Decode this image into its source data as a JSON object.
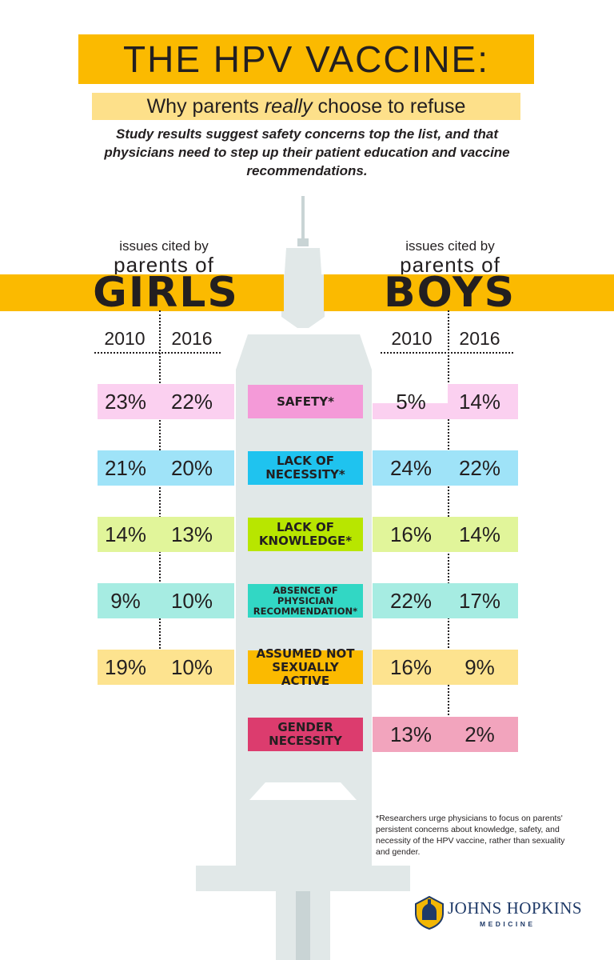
{
  "title": "THE HPV VACCINE:",
  "subtitle_before": "Why parents ",
  "subtitle_em": "really",
  "subtitle_after": " choose to refuse",
  "intro": "Study results suggest safety concerns top the list, and that physicians need to step up their patient education and vaccine recommendations.",
  "groups": {
    "girls": {
      "cited": "issues cited by",
      "parents": "parents of",
      "name": "GIRLS"
    },
    "boys": {
      "cited": "issues cited by",
      "parents": "parents of",
      "name": "BOYS"
    }
  },
  "years": [
    "2010",
    "2016"
  ],
  "rows": [
    {
      "label_lines": [
        "SAFETY*"
      ],
      "color": "#f49ad8",
      "light": "#fbd0f0",
      "girls": [
        "23%",
        "22%"
      ],
      "boys": [
        "5%",
        "14%"
      ]
    },
    {
      "label_lines": [
        "LACK OF",
        "NECESSITY*"
      ],
      "color": "#1fc3ef",
      "light": "#9fe3f8",
      "girls": [
        "21%",
        "20%"
      ],
      "boys": [
        "24%",
        "22%"
      ]
    },
    {
      "label_lines": [
        "LACK OF",
        "KNOWLEDGE*"
      ],
      "color": "#b8e600",
      "light": "#e1f59a",
      "girls": [
        "14%",
        "13%"
      ],
      "boys": [
        "16%",
        "14%"
      ]
    },
    {
      "label_lines": [
        "ABSENCE OF",
        "PHYSICIAN",
        "RECOMMENDATION*"
      ],
      "color": "#32d7c4",
      "light": "#a6ece2",
      "girls": [
        "9%",
        "10%"
      ],
      "boys": [
        "22%",
        "17%"
      ]
    },
    {
      "label_lines": [
        "ASSUMED NOT",
        "SEXUALLY ACTIVE"
      ],
      "color": "#fbba00",
      "light": "#fde38f",
      "girls": [
        "19%",
        "10%"
      ],
      "boys": [
        "16%",
        "9%"
      ]
    },
    {
      "label_lines": [
        "GENDER",
        "NECESSITY"
      ],
      "color": "#dc3c6e",
      "light": "#f2a4bd",
      "girls": null,
      "boys": [
        "13%",
        "2%"
      ]
    }
  ],
  "footnote": "*Researchers urge physicians to focus on parents' persistent concerns about knowledge, safety, and necessity of the HPV vaccine, rather than sexuality and gender.",
  "logo": {
    "name": "JOHNS HOPKINS",
    "sub": "MEDICINE",
    "icon": "johns-hopkins-shield-icon"
  }
}
